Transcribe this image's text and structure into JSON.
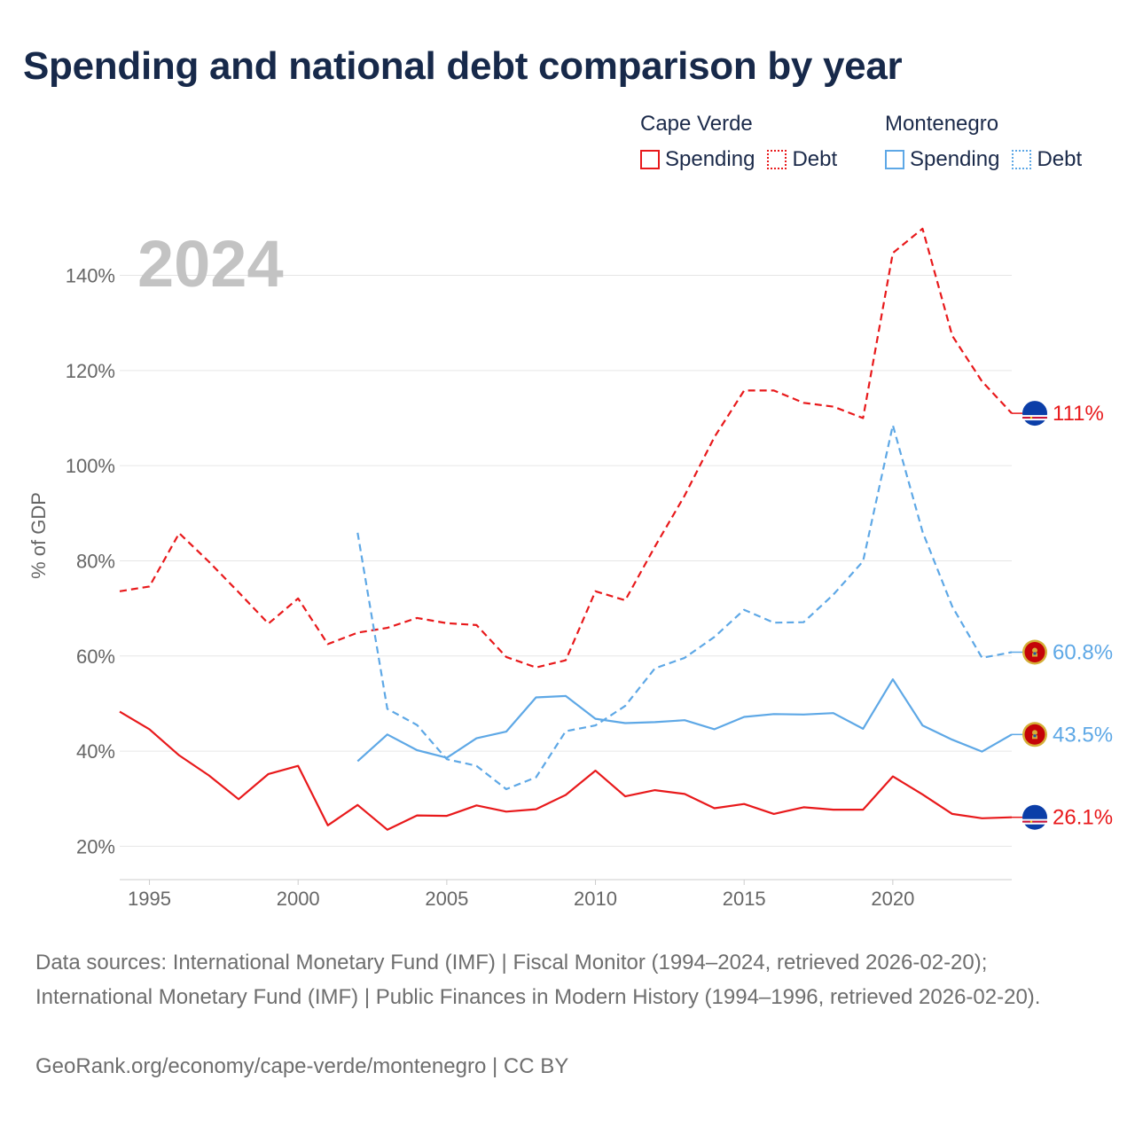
{
  "title": "Spending and national debt comparison by year",
  "legend": {
    "groups": [
      {
        "name": "Cape Verde",
        "spending_label": "Spending",
        "debt_label": "Debt"
      },
      {
        "name": "Montenegro",
        "spending_label": "Spending",
        "debt_label": "Debt"
      }
    ]
  },
  "colors": {
    "cape_verde": "#e8191b",
    "montenegro": "#5ea8e6"
  },
  "source_text": "Data sources: International Monetary Fund (IMF) | Fiscal Monitor (1994–2024, retrieved 2026-02-20); International Monetary Fund (IMF) | Public Finances in Modern History (1994–1996, retrieved 2026-02-20).",
  "credit_text": "GeoRank.org/economy/cape-verde/montenegro | CC BY",
  "chart_data": {
    "type": "line",
    "year_label": "2024",
    "ylabel": "% of GDP",
    "xlim": [
      1994,
      2024
    ],
    "ylim": [
      13,
      155
    ],
    "x_ticks": [
      1995,
      2000,
      2005,
      2010,
      2015,
      2020
    ],
    "y_ticks": [
      20,
      40,
      60,
      80,
      100,
      120,
      140
    ],
    "y_tick_labels": [
      "20%",
      "40%",
      "60%",
      "80%",
      "100%",
      "120%",
      "140%"
    ],
    "grid": true,
    "series": [
      {
        "name": "Cape Verde Debt",
        "country": "Cape Verde",
        "metric": "Debt",
        "color": "#e8191b",
        "dashed": true,
        "x": [
          1994,
          1995,
          1996,
          1997,
          1998,
          1999,
          2000,
          2001,
          2002,
          2003,
          2004,
          2005,
          2006,
          2007,
          2008,
          2009,
          2010,
          2011,
          2012,
          2013,
          2014,
          2015,
          2016,
          2017,
          2018,
          2019,
          2020,
          2021,
          2022,
          2023,
          2024
        ],
        "values": [
          73.6,
          74.6,
          85.8,
          79.8,
          73.4,
          66.8,
          72.1,
          62.5,
          64.9,
          65.9,
          68.0,
          66.9,
          66.5,
          59.8,
          57.6,
          59.1,
          73.6,
          71.7,
          83.0,
          93.7,
          106.0,
          115.8,
          115.8,
          113.2,
          112.4,
          110.0,
          144.7,
          149.8,
          127.3,
          117.7,
          111.0
        ],
        "end_label": "111%"
      },
      {
        "name": "Cape Verde Spending",
        "country": "Cape Verde",
        "metric": "Spending",
        "color": "#e8191b",
        "dashed": false,
        "x": [
          1994,
          1995,
          1996,
          1997,
          1998,
          1999,
          2000,
          2001,
          2002,
          2003,
          2004,
          2005,
          2006,
          2007,
          2008,
          2009,
          2010,
          2011,
          2012,
          2013,
          2014,
          2015,
          2016,
          2017,
          2018,
          2019,
          2020,
          2021,
          2022,
          2023,
          2024
        ],
        "values": [
          48.3,
          44.6,
          39.1,
          34.9,
          29.9,
          35.2,
          36.9,
          24.4,
          28.7,
          23.5,
          26.5,
          26.4,
          28.6,
          27.3,
          27.8,
          30.8,
          35.9,
          30.5,
          31.8,
          31.0,
          28.0,
          28.9,
          26.8,
          28.2,
          27.7,
          27.7,
          34.7,
          30.9,
          26.8,
          25.9,
          26.1
        ],
        "end_label": "26.1%"
      },
      {
        "name": "Montenegro Debt",
        "country": "Montenegro",
        "metric": "Debt",
        "color": "#5ea8e6",
        "dashed": true,
        "x": [
          2002,
          2003,
          2004,
          2005,
          2006,
          2007,
          2008,
          2009,
          2010,
          2011,
          2012,
          2013,
          2014,
          2015,
          2016,
          2017,
          2018,
          2019,
          2020,
          2021,
          2022,
          2023,
          2024
        ],
        "values": [
          85.9,
          48.9,
          45.5,
          38.3,
          36.9,
          32.0,
          34.5,
          44.2,
          45.4,
          49.5,
          57.4,
          59.6,
          64.0,
          69.7,
          67.0,
          67.1,
          72.9,
          79.9,
          108.5,
          86.1,
          70.4,
          59.6,
          60.8
        ],
        "end_label": "60.8%"
      },
      {
        "name": "Montenegro Spending",
        "country": "Montenegro",
        "metric": "Spending",
        "color": "#5ea8e6",
        "dashed": false,
        "x": [
          2002,
          2003,
          2004,
          2005,
          2006,
          2007,
          2008,
          2009,
          2010,
          2011,
          2012,
          2013,
          2014,
          2015,
          2016,
          2017,
          2018,
          2019,
          2020,
          2021,
          2022,
          2023,
          2024
        ],
        "values": [
          37.9,
          43.5,
          40.2,
          38.6,
          42.7,
          44.1,
          51.3,
          51.6,
          46.8,
          45.9,
          46.1,
          46.5,
          44.6,
          47.2,
          47.8,
          47.7,
          48.0,
          44.7,
          55.1,
          45.4,
          42.4,
          39.9,
          43.5
        ],
        "end_label": "43.5%"
      }
    ]
  }
}
